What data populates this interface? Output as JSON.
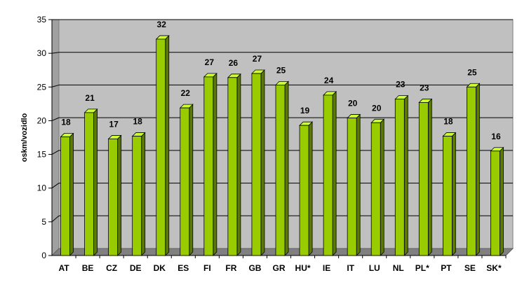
{
  "chart_data": {
    "type": "bar",
    "title": "",
    "xlabel": "",
    "ylabel": "oskm/vozidlo",
    "ylim": [
      0,
      35
    ],
    "yticks": [
      0,
      5,
      10,
      15,
      20,
      25,
      30,
      35
    ],
    "grid": true,
    "legend": "none",
    "categories": [
      "AT",
      "BE",
      "CZ",
      "DE",
      "DK",
      "ES",
      "FI",
      "FR",
      "GB",
      "GR",
      "HU*",
      "IE",
      "IT",
      "LU",
      "NL",
      "PL*",
      "PT",
      "SE",
      "SK*"
    ],
    "values": [
      17.6,
      21.2,
      17.3,
      17.7,
      32.1,
      21.9,
      26.5,
      26.4,
      27.0,
      25.3,
      19.3,
      23.8,
      20.4,
      19.7,
      23.2,
      22.7,
      17.7,
      25.0,
      15.5
    ],
    "data_labels": [
      "18",
      "21",
      "17",
      "18",
      "32",
      "22",
      "27",
      "26",
      "27",
      "25",
      "19",
      "24",
      "20",
      "20",
      "23",
      "23",
      "18",
      "25",
      "16"
    ],
    "colors": {
      "plot_background": "#c0c0c0",
      "plot_side_wall": "#a0a0a0",
      "floor": "#808080",
      "gridline": "#000000",
      "bar_front": "#99cc00",
      "bar_top": "#ccff33",
      "bar_side": "#5a7a00",
      "bar_outline": "#000000"
    }
  }
}
